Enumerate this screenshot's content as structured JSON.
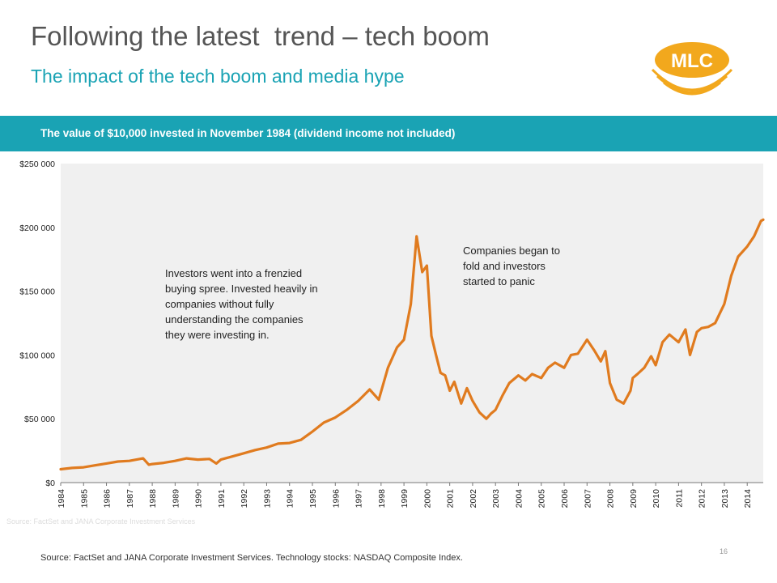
{
  "slide": {
    "title": "Following the latest  trend – tech boom",
    "subtitle": "The impact of the tech boom and media hype",
    "logo_text": "MLC",
    "banner": "The value of $10,000 invested in November 1984 (dividend income not included)",
    "source": "Source: FactSet and JANA Corporate Investment Services. Technology stocks: NASDAQ Composite Index.",
    "faint_source": "Source: FactSet and JANA Corporate Investment Services",
    "page_number": "16"
  },
  "colors": {
    "accent": "#1aa3b4",
    "line": "#e07b1f",
    "plot_bg": "#f0f0f0",
    "logo": "#f2a81d"
  },
  "annotations": [
    {
      "lines": [
        "Investors went into a frenzied",
        "buying spree. Invested heavily in",
        "companies without fully",
        "understanding the companies",
        "they were investing in."
      ]
    },
    {
      "lines": [
        "Companies began to",
        "fold and investors",
        "started to panic"
      ]
    }
  ],
  "chart_data": {
    "type": "line",
    "title": "",
    "xlabel": "",
    "ylabel": "",
    "ylim": [
      0,
      250000
    ],
    "xlim": [
      1984,
      2014.7
    ],
    "y_ticks": [
      0,
      50000,
      100000,
      150000,
      200000,
      250000
    ],
    "y_tick_labels": [
      "$0",
      "$50 000",
      "$100 000",
      "$150 000",
      "$200 000",
      "$250 000"
    ],
    "x_tick_labels": [
      "1984",
      "1985",
      "1986",
      "1987",
      "1988",
      "1989",
      "1990",
      "1991",
      "1992",
      "1993",
      "1994",
      "1995",
      "1996",
      "1997",
      "1998",
      "1999",
      "2000",
      "2001",
      "2002",
      "2003",
      "2004",
      "2005",
      "2006",
      "2007",
      "2008",
      "2009",
      "2010",
      "2011",
      "2012",
      "2013",
      "2014"
    ],
    "grid": false,
    "legend": "none",
    "series": [
      {
        "x": [
          1984.0,
          1984.5,
          1985.0,
          1985.5,
          1986.0,
          1986.5,
          1987.0,
          1987.6,
          1987.85,
          1988.0,
          1988.5,
          1989.0,
          1989.5,
          1990.0,
          1990.5,
          1990.8,
          1991.0,
          1991.5,
          1992.0,
          1992.5,
          1993.0,
          1993.5,
          1994.0,
          1994.5,
          1995.0,
          1995.5,
          1996.0,
          1996.5,
          1997.0,
          1997.5,
          1997.9,
          1998.3,
          1998.7,
          1999.0,
          1999.3,
          1999.55,
          1999.8,
          2000.0,
          2000.2,
          2000.4,
          2000.6,
          2000.8,
          2001.0,
          2001.2,
          2001.5,
          2001.75,
          2002.0,
          2002.3,
          2002.6,
          2002.8,
          2003.0,
          2003.3,
          2003.6,
          2004.0,
          2004.3,
          2004.6,
          2005.0,
          2005.3,
          2005.6,
          2006.0,
          2006.3,
          2006.6,
          2007.0,
          2007.3,
          2007.6,
          2007.8,
          2008.0,
          2008.3,
          2008.6,
          2008.9,
          2009.0,
          2009.2,
          2009.5,
          2009.8,
          2010.0,
          2010.3,
          2010.6,
          2011.0,
          2011.3,
          2011.5,
          2011.8,
          2012.0,
          2012.3,
          2012.6,
          2013.0,
          2013.3,
          2013.6,
          2014.0,
          2014.3,
          2014.6,
          2014.7
        ],
        "y": [
          10500,
          11500,
          12000,
          13500,
          15000,
          16500,
          17000,
          19000,
          14000,
          14500,
          15500,
          17000,
          19000,
          18000,
          18500,
          15000,
          18000,
          20500,
          23000,
          25500,
          27500,
          30500,
          31000,
          33500,
          40000,
          47000,
          51000,
          57000,
          64000,
          73000,
          65000,
          90000,
          106000,
          112000,
          140000,
          193000,
          165000,
          170000,
          115000,
          100000,
          86000,
          84000,
          72000,
          79000,
          62000,
          74000,
          64000,
          55000,
          50000,
          54000,
          57000,
          68000,
          78000,
          84000,
          80000,
          85000,
          82000,
          90000,
          94000,
          90000,
          100000,
          101000,
          112000,
          104000,
          95000,
          103000,
          78000,
          65000,
          62000,
          72000,
          82000,
          85000,
          90000,
          99000,
          92000,
          110000,
          116000,
          110000,
          120000,
          100000,
          118000,
          121000,
          122000,
          125000,
          140000,
          162000,
          177000,
          185000,
          193000,
          205000,
          206000
        ]
      }
    ]
  }
}
